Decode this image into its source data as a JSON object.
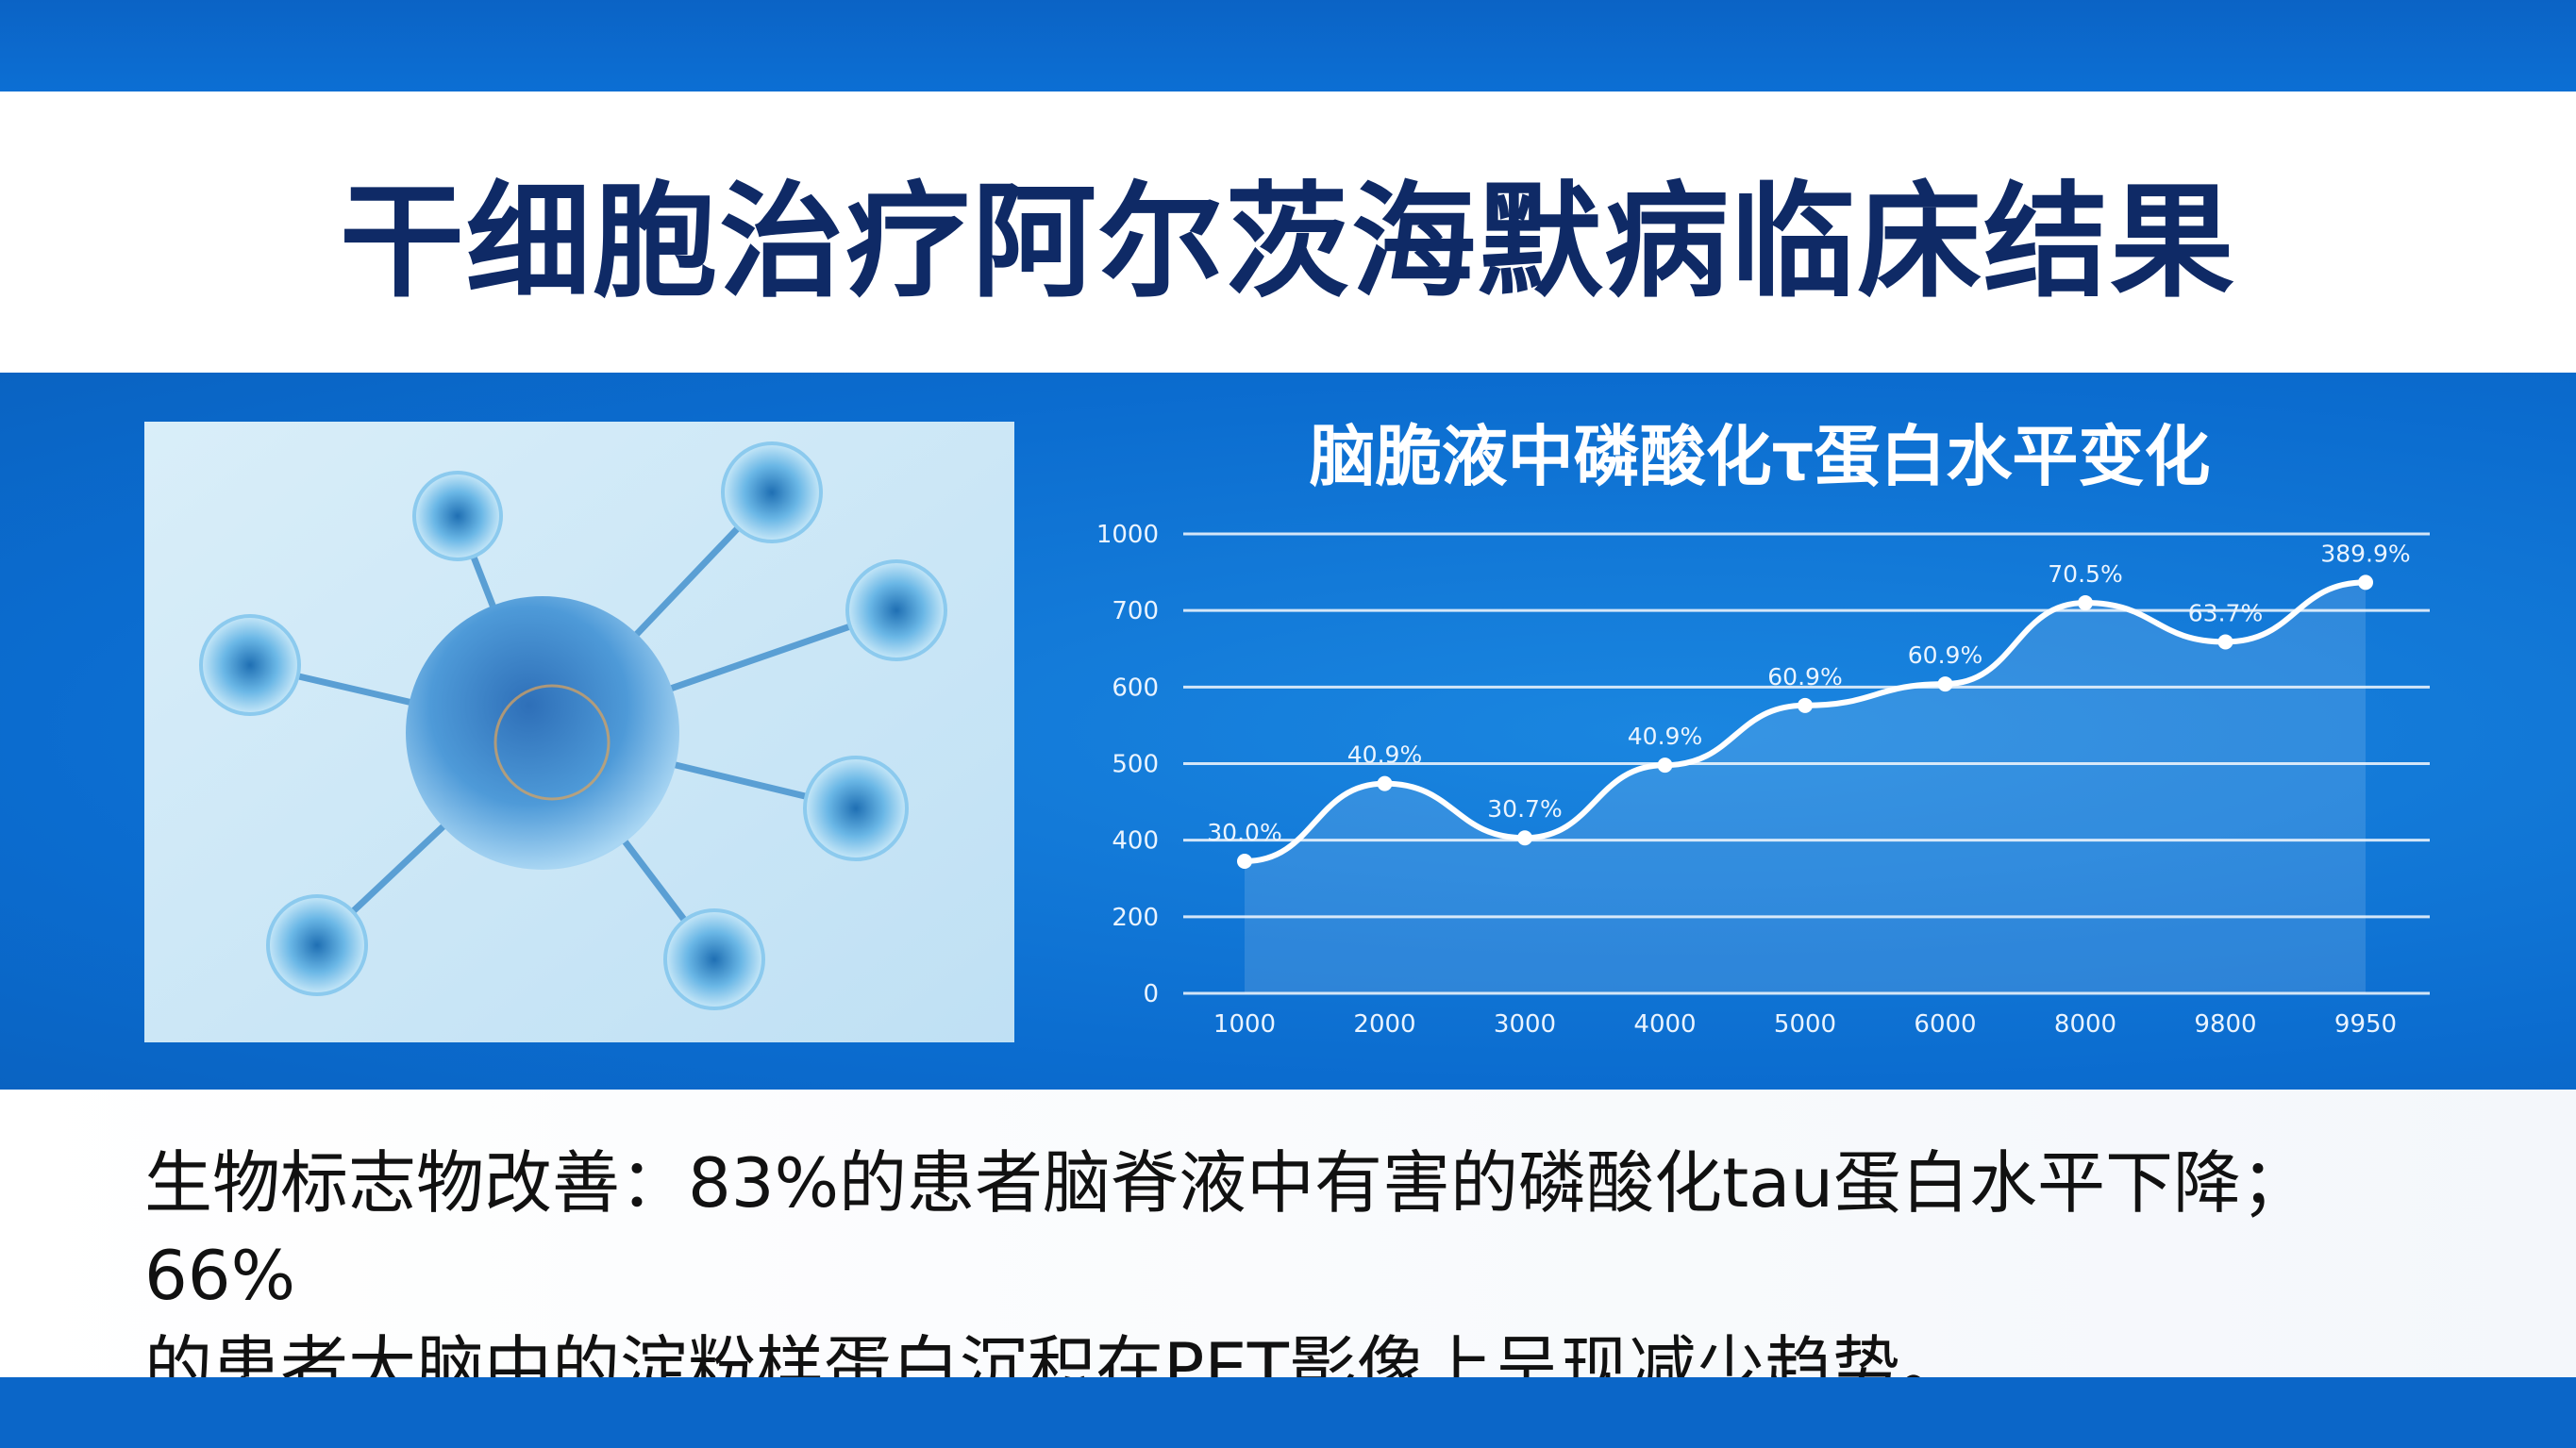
{
  "title": "干细胞治疗阿尔茨海默病临床结果",
  "illustration": "stem-cell-illustration",
  "chart_data": {
    "type": "area",
    "title": "脑脆液中磷酸化τ蛋白水平变化",
    "categories": [
      "1000",
      "2000",
      "3000",
      "4000",
      "5000",
      "6000",
      "8000",
      "9800",
      "9950"
    ],
    "y_ticks": [
      0,
      200,
      400,
      500,
      600,
      700,
      1000
    ],
    "y_scale": "tick-index (non-linear, equally spaced ticks)",
    "values": [
      345,
      474,
      403,
      498,
      576,
      604,
      730,
      659,
      810
    ],
    "data_labels": [
      "30.0%",
      "40.9%",
      "30.7%",
      "40.9%",
      "60.9%",
      "60.9%",
      "70.5%",
      "63.7%",
      "389.9%"
    ],
    "grid": true,
    "colors": {
      "line": "#ffffff",
      "fill": "#ffffff"
    }
  },
  "description": {
    "line1": "生物标志物改善：83%的患者脑脊液中有害的磷酸化tau蛋白水平下降；66%",
    "line2": "的患者大脑中的淀粉样蛋白沉积在PET影像上呈现减少趋势。"
  }
}
